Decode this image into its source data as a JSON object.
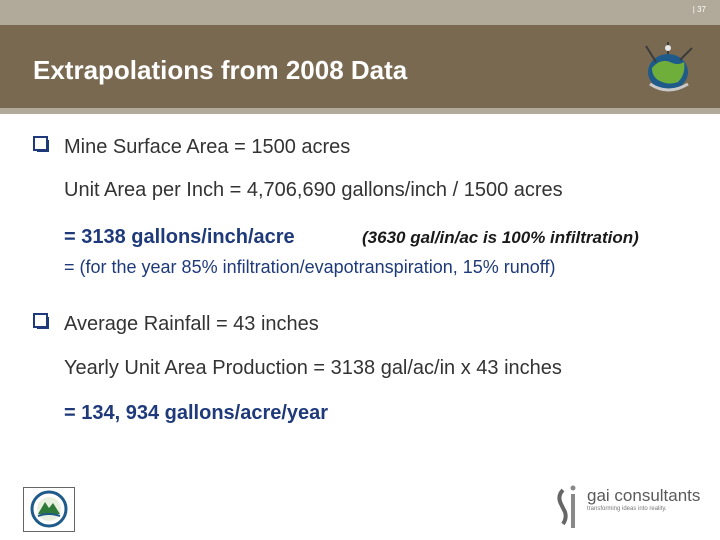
{
  "slide": {
    "page_number": "| 37",
    "title": "Extrapolations from 2008 Data"
  },
  "content": {
    "line1": "Mine Surface Area = 1500 acres",
    "line2": "Unit Area per Inch  = 4,706,690 gallons/inch / 1500 acres",
    "line3": "= 3138 gallons/inch/acre",
    "line3_note": "(3630 gal/in/ac is 100% infiltration)",
    "line4": "= (for the year 85% infiltration/evapotranspiration, 15% runoff)",
    "line5": "Average Rainfall = 43 inches",
    "line6": "Yearly  Unit Area Production = 3138 gal/ac/in x 43 inches",
    "line7": "= 134, 934 gallons/acre/year"
  },
  "footer": {
    "company_name": "gai consultants",
    "company_tagline": "transforming ideas into reality."
  },
  "icons": {
    "bullet": "checkbox-square-icon",
    "top_logo": "globe-emblem-icon",
    "bottom_left_logo": "state-seal-icon",
    "company_logo": "gai-logo-icon"
  },
  "colors": {
    "header": "#7a6951",
    "header_accent": "#b1a999",
    "emphasis_text": "#1f3a7a",
    "body_text": "#333333"
  }
}
